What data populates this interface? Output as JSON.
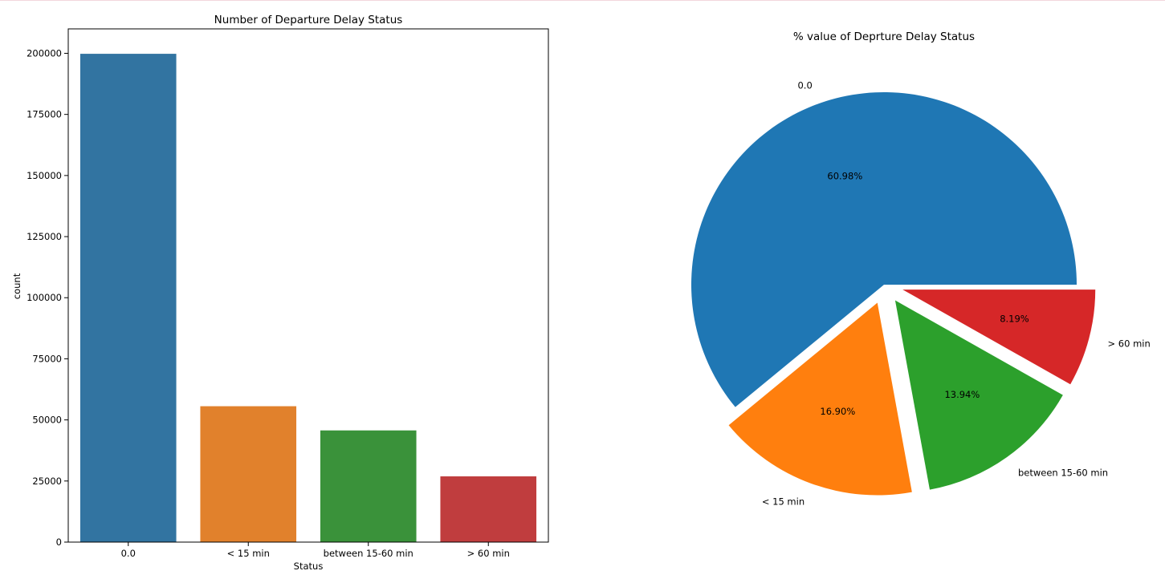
{
  "chart_data": [
    {
      "type": "bar",
      "title": "Number of Departure Delay Status",
      "xlabel": "Status",
      "ylabel": "count",
      "categories": [
        "0.0",
        "< 15 min",
        "between 15-60 min",
        "> 60 min"
      ],
      "values": [
        199800,
        55600,
        45700,
        26900
      ],
      "colors": [
        "#3274a1",
        "#e1812c",
        "#3a923a",
        "#c03d3e"
      ],
      "ylim": [
        0,
        210000
      ],
      "yticks": [
        0,
        25000,
        50000,
        75000,
        100000,
        125000,
        150000,
        175000,
        200000
      ],
      "grid": false
    },
    {
      "type": "pie",
      "title": "% value of Deprture Delay Status",
      "labels": [
        "0.0",
        "< 15 min",
        "between 15-60 min",
        "> 60 min"
      ],
      "values": [
        60.98,
        16.9,
        13.94,
        8.19
      ],
      "pct_labels": [
        "60.98%",
        "16.90%",
        "13.94%",
        "8.19%"
      ],
      "colors": [
        "#1f77b4",
        "#ff7f0e",
        "#2ca02c",
        "#d62728"
      ],
      "explode": [
        0,
        0.1,
        0.1,
        0.1
      ]
    }
  ]
}
